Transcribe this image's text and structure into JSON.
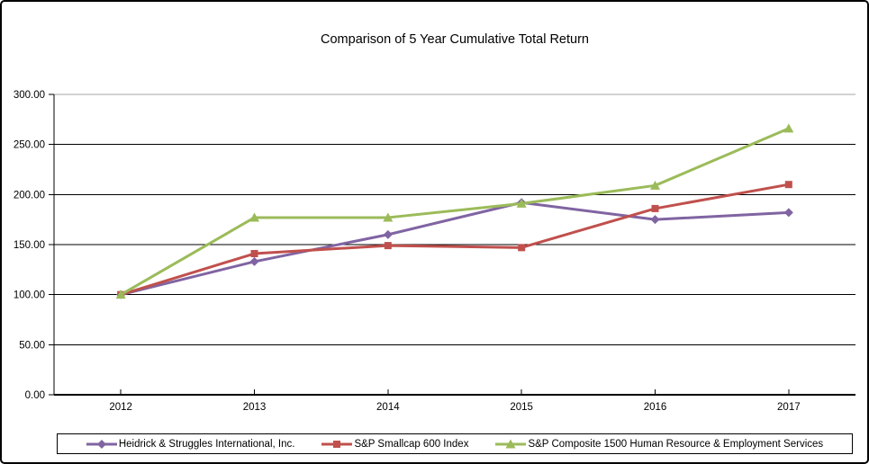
{
  "title": "Comparison of 5 Year Cumulative Total Return",
  "chart_data": {
    "type": "line",
    "title": "Comparison of 5 Year Cumulative Total Return",
    "categories": [
      "2012",
      "2013",
      "2014",
      "2015",
      "2016",
      "2017"
    ],
    "series": [
      {
        "name": "Heidrick & Struggles International, Inc.",
        "color": "#8064A2",
        "marker": "diamond",
        "values": [
          100.0,
          133.0,
          160.0,
          192.0,
          175.0,
          182.0
        ]
      },
      {
        "name": "S&P Smallcap 600 Index",
        "color": "#C0504D",
        "marker": "square",
        "values": [
          100.0,
          141.0,
          149.0,
          147.0,
          186.0,
          210.0
        ]
      },
      {
        "name": "S&P Composite 1500 Human Resource & Employment Services",
        "color": "#9BBB59",
        "marker": "triangle",
        "values": [
          100.0,
          177.0,
          177.0,
          191.0,
          209.0,
          266.0
        ]
      }
    ],
    "xlabel": "",
    "ylabel": "",
    "ylim": [
      0,
      300
    ],
    "ytick_step": 50,
    "ytick_labels": [
      "0.00",
      "50.00",
      "100.00",
      "150.00",
      "200.00",
      "250.00",
      "300.00"
    ],
    "grid": true,
    "gridline_color": "#000000",
    "top_gridline_color": "#A6A6A6",
    "axis_color": "#000000",
    "legend_position": "bottom"
  }
}
